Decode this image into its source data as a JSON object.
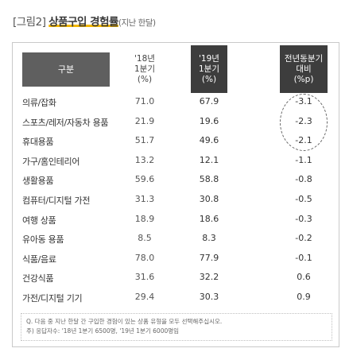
{
  "title": {
    "prefix": "[그림2]",
    "main": "상품구입 경험률",
    "note": "(지난 한달)"
  },
  "table": {
    "group_header": "구분",
    "col_2018": "'18년\n1분기\n(%)",
    "col_2019": "'19년\n1분기\n(%)",
    "col_diff": "전년동분기\n대비\n(%p)",
    "rows": [
      {
        "label": "의류/잡화",
        "v2018": "71.0",
        "v2019": "67.9",
        "diff": "-3.1"
      },
      {
        "label": "스포츠/레저/자동차 용품",
        "v2018": "21.9",
        "v2019": "19.6",
        "diff": "-2.3"
      },
      {
        "label": "휴대용품",
        "v2018": "51.7",
        "v2019": "49.6",
        "diff": "-2.1"
      },
      {
        "label": "가구/홈인테리어",
        "v2018": "13.2",
        "v2019": "12.1",
        "diff": "-1.1"
      },
      {
        "label": "생활용품",
        "v2018": "59.6",
        "v2019": "58.8",
        "diff": "-0.8"
      },
      {
        "label": "컴퓨터/디지털 가전",
        "v2018": "31.3",
        "v2019": "30.8",
        "diff": "-0.5"
      },
      {
        "label": "여행 상품",
        "v2018": "18.9",
        "v2019": "18.6",
        "diff": "-0.3"
      },
      {
        "label": "유아동 용품",
        "v2018": "8.5",
        "v2019": "8.3",
        "diff": "-0.2"
      },
      {
        "label": "식품/음료",
        "v2018": "78.0",
        "v2019": "77.9",
        "diff": "-0.1"
      },
      {
        "label": "건강식품",
        "v2018": "31.6",
        "v2019": "32.2",
        "diff": "0.6"
      },
      {
        "label": "가전/디지털 기기",
        "v2018": "29.4",
        "v2019": "30.3",
        "diff": "0.9"
      }
    ]
  },
  "footnote": {
    "line1": "Q. 다음 중 지난 한달 간 구입한 경험이 있는 상품 유형을 모두 선택해주십시오.",
    "line2": "주) 응답자수: '18년 1분기 6500명, '19년 1분기 6000명임"
  }
}
